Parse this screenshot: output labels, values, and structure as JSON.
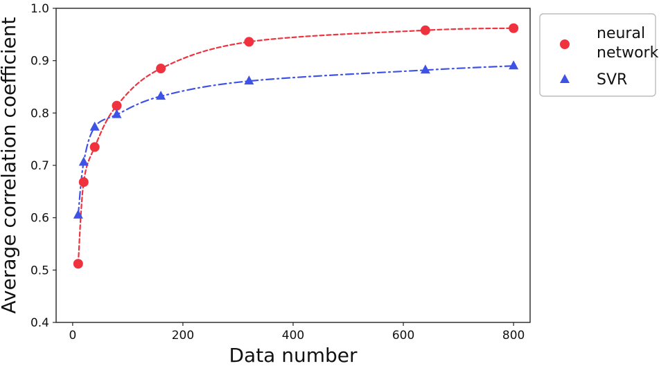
{
  "chart_data": {
    "type": "line",
    "title": "",
    "xlabel": "Data number",
    "ylabel": "Average correlation coefficient",
    "xlim": [
      -30,
      830
    ],
    "ylim": [
      0.4,
      1.0
    ],
    "xticks": [
      0,
      200,
      400,
      600,
      800
    ],
    "yticks": [
      0.4,
      0.5,
      0.6,
      0.7,
      0.8,
      0.9,
      1.0
    ],
    "xtick_labels": [
      "0",
      "200",
      "400",
      "600",
      "800"
    ],
    "ytick_labels": [
      "0.4",
      "0.5",
      "0.6",
      "0.7",
      "0.8",
      "0.9",
      "1.0"
    ],
    "legend_position": "outside-right-top",
    "grid": false,
    "series": [
      {
        "name": "neural network",
        "legend_lines": [
          "neural",
          "network"
        ],
        "marker": "circle",
        "line_style": "dashed",
        "color": "#f0323f",
        "x": [
          10,
          20,
          40,
          80,
          160,
          320,
          640,
          800
        ],
        "y": [
          0.512,
          0.668,
          0.735,
          0.814,
          0.885,
          0.936,
          0.958,
          0.962
        ]
      },
      {
        "name": "SVR",
        "legend_lines": [
          "SVR"
        ],
        "marker": "triangle",
        "line_style": "dashdot",
        "color": "#3f52e6",
        "x": [
          10,
          20,
          40,
          80,
          160,
          320,
          640,
          800
        ],
        "y": [
          0.605,
          0.706,
          0.773,
          0.797,
          0.832,
          0.861,
          0.882,
          0.89
        ]
      }
    ]
  }
}
